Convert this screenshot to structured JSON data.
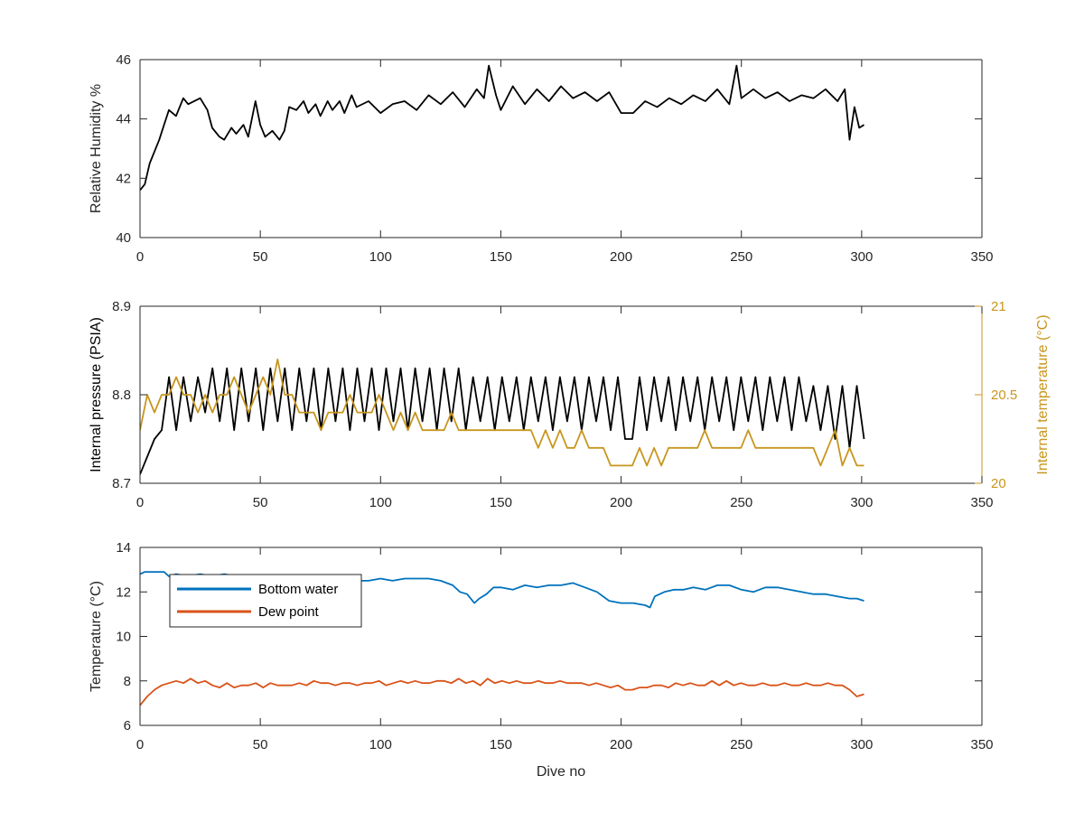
{
  "colors": {
    "black": "#000000",
    "axis": "#262626",
    "pressure": "#000000",
    "temperature_right": "#c8961e",
    "bottom_water": "#0072bd",
    "dew_point": "#d95319"
  },
  "chart_data": [
    {
      "type": "line",
      "title": "",
      "xlabel": "",
      "ylabel": "Relative Humidity %",
      "xlim": [
        0,
        350
      ],
      "ylim": [
        40,
        46
      ],
      "xticks": [
        "0",
        "50",
        "100",
        "150",
        "200",
        "250",
        "300",
        "350"
      ],
      "yticks": [
        "40",
        "42",
        "44",
        "46"
      ],
      "grid": false,
      "series": [
        {
          "color": "black",
          "x": [
            0,
            2,
            4,
            6,
            8,
            10,
            12,
            15,
            18,
            20,
            25,
            28,
            30,
            33,
            35,
            38,
            40,
            43,
            45,
            48,
            50,
            52,
            55,
            58,
            60,
            62,
            65,
            68,
            70,
            73,
            75,
            78,
            80,
            83,
            85,
            88,
            90,
            95,
            100,
            105,
            110,
            115,
            120,
            125,
            130,
            135,
            140,
            143,
            145,
            148,
            150,
            155,
            160,
            165,
            170,
            175,
            180,
            185,
            190,
            195,
            200,
            205,
            210,
            215,
            220,
            225,
            230,
            235,
            240,
            245,
            248,
            250,
            255,
            260,
            265,
            270,
            275,
            280,
            285,
            290,
            293,
            295,
            297,
            299,
            301
          ],
          "values": [
            41.6,
            41.8,
            42.5,
            42.9,
            43.3,
            43.8,
            44.3,
            44.1,
            44.7,
            44.5,
            44.7,
            44.3,
            43.7,
            43.4,
            43.3,
            43.7,
            43.5,
            43.8,
            43.4,
            44.6,
            43.8,
            43.4,
            43.6,
            43.3,
            43.6,
            44.4,
            44.3,
            44.6,
            44.2,
            44.5,
            44.1,
            44.6,
            44.3,
            44.6,
            44.2,
            44.8,
            44.4,
            44.6,
            44.2,
            44.5,
            44.6,
            44.3,
            44.8,
            44.5,
            44.9,
            44.4,
            45.0,
            44.7,
            45.8,
            44.8,
            44.3,
            45.1,
            44.5,
            45.0,
            44.6,
            45.1,
            44.7,
            44.9,
            44.6,
            44.9,
            44.2,
            44.2,
            44.6,
            44.4,
            44.7,
            44.5,
            44.8,
            44.6,
            45.0,
            44.5,
            45.8,
            44.7,
            45.0,
            44.7,
            44.9,
            44.6,
            44.8,
            44.7,
            45.0,
            44.6,
            45.0,
            43.3,
            44.4,
            43.7,
            43.8
          ]
        }
      ]
    },
    {
      "type": "line",
      "title": "",
      "xlabel": "",
      "ylabel": "Internal pressure (PSIA)",
      "ylabel_right": "Internal temperature (°C)",
      "xlim": [
        0,
        350
      ],
      "ylim": [
        8.7,
        8.9
      ],
      "ylim_right": [
        20,
        21
      ],
      "xticks": [
        "0",
        "50",
        "100",
        "150",
        "200",
        "250",
        "300",
        "350"
      ],
      "yticks": [
        "8.7",
        "8.8",
        "8.9"
      ],
      "yticks_right": [
        "20",
        "20.5",
        "21"
      ],
      "grid": false,
      "series": [
        {
          "axis": "left",
          "color": "pressure",
          "x_start": 0,
          "x_end": 301,
          "x_step": 3,
          "values": [
            8.71,
            8.73,
            8.75,
            8.76,
            8.82,
            8.76,
            8.82,
            8.77,
            8.82,
            8.78,
            8.83,
            8.77,
            8.83,
            8.76,
            8.83,
            8.77,
            8.83,
            8.76,
            8.83,
            8.77,
            8.83,
            8.76,
            8.83,
            8.77,
            8.83,
            8.76,
            8.83,
            8.77,
            8.83,
            8.76,
            8.83,
            8.77,
            8.83,
            8.76,
            8.83,
            8.77,
            8.83,
            8.76,
            8.83,
            8.77,
            8.83,
            8.76,
            8.83,
            8.77,
            8.83,
            8.76,
            8.82,
            8.77,
            8.82,
            8.76,
            8.82,
            8.77,
            8.82,
            8.76,
            8.82,
            8.77,
            8.82,
            8.76,
            8.82,
            8.77,
            8.82,
            8.76,
            8.82,
            8.77,
            8.82,
            8.76,
            8.82,
            8.75,
            8.75,
            8.82,
            8.76,
            8.82,
            8.77,
            8.82,
            8.76,
            8.82,
            8.77,
            8.82,
            8.76,
            8.82,
            8.77,
            8.82,
            8.76,
            8.82,
            8.77,
            8.82,
            8.76,
            8.82,
            8.77,
            8.82,
            8.76,
            8.82,
            8.77,
            8.81,
            8.76,
            8.81,
            8.75,
            8.81,
            8.74,
            8.81,
            8.75
          ]
        },
        {
          "axis": "right",
          "color": "temperature_right",
          "x_start": 0,
          "x_end": 301,
          "x_step": 3,
          "values": [
            20.3,
            20.5,
            20.4,
            20.5,
            20.5,
            20.6,
            20.5,
            20.5,
            20.4,
            20.5,
            20.4,
            20.5,
            20.5,
            20.6,
            20.5,
            20.4,
            20.5,
            20.6,
            20.5,
            20.7,
            20.5,
            20.5,
            20.4,
            20.4,
            20.4,
            20.3,
            20.4,
            20.4,
            20.4,
            20.5,
            20.4,
            20.4,
            20.4,
            20.5,
            20.4,
            20.3,
            20.4,
            20.3,
            20.4,
            20.3,
            20.3,
            20.3,
            20.3,
            20.4,
            20.3,
            20.3,
            20.3,
            20.3,
            20.3,
            20.3,
            20.3,
            20.3,
            20.3,
            20.3,
            20.3,
            20.2,
            20.3,
            20.2,
            20.3,
            20.2,
            20.2,
            20.3,
            20.2,
            20.2,
            20.2,
            20.1,
            20.1,
            20.1,
            20.1,
            20.2,
            20.1,
            20.2,
            20.1,
            20.2,
            20.2,
            20.2,
            20.2,
            20.2,
            20.3,
            20.2,
            20.2,
            20.2,
            20.2,
            20.2,
            20.3,
            20.2,
            20.2,
            20.2,
            20.2,
            20.2,
            20.2,
            20.2,
            20.2,
            20.2,
            20.1,
            20.2,
            20.3,
            20.1,
            20.2,
            20.1,
            20.1
          ]
        }
      ]
    },
    {
      "type": "line",
      "title": "",
      "xlabel": "Dive no",
      "ylabel": "Temperature (°C)",
      "xlim": [
        0,
        350
      ],
      "ylim": [
        6,
        14
      ],
      "xticks": [
        "0",
        "50",
        "100",
        "150",
        "200",
        "250",
        "300",
        "350"
      ],
      "yticks": [
        "6",
        "8",
        "10",
        "12",
        "14"
      ],
      "grid": false,
      "legend": "top-left",
      "series": [
        {
          "name": "Bottom water",
          "color": "bottom_water",
          "x": [
            0,
            2,
            5,
            10,
            12,
            15,
            20,
            25,
            30,
            35,
            40,
            45,
            50,
            55,
            60,
            65,
            70,
            75,
            80,
            85,
            90,
            95,
            100,
            105,
            110,
            115,
            120,
            125,
            130,
            133,
            136,
            139,
            141,
            144,
            147,
            150,
            155,
            160,
            165,
            170,
            175,
            180,
            185,
            190,
            195,
            200,
            205,
            210,
            212,
            214,
            218,
            222,
            226,
            230,
            235,
            240,
            245,
            250,
            255,
            260,
            265,
            270,
            275,
            280,
            285,
            290,
            295,
            298,
            301
          ],
          "values": [
            12.8,
            12.9,
            12.9,
            12.9,
            12.7,
            12.8,
            12.7,
            12.8,
            12.7,
            12.8,
            12.7,
            12.7,
            12.6,
            12.7,
            12.6,
            12.5,
            12.6,
            12.5,
            12.5,
            12.6,
            12.5,
            12.5,
            12.6,
            12.5,
            12.6,
            12.6,
            12.6,
            12.5,
            12.3,
            12.0,
            11.9,
            11.5,
            11.7,
            11.9,
            12.2,
            12.2,
            12.1,
            12.3,
            12.2,
            12.3,
            12.3,
            12.4,
            12.2,
            12.0,
            11.6,
            11.5,
            11.5,
            11.4,
            11.3,
            11.8,
            12.0,
            12.1,
            12.1,
            12.2,
            12.1,
            12.3,
            12.3,
            12.1,
            12.0,
            12.2,
            12.2,
            12.1,
            12.0,
            11.9,
            11.9,
            11.8,
            11.7,
            11.7,
            11.6
          ]
        },
        {
          "name": "Dew point",
          "color": "dew_point",
          "x_start": 0,
          "x_end": 301,
          "x_step": 3,
          "values": [
            6.9,
            7.3,
            7.6,
            7.8,
            7.9,
            8.0,
            7.9,
            8.1,
            7.9,
            8.0,
            7.8,
            7.7,
            7.9,
            7.7,
            7.8,
            7.8,
            7.9,
            7.7,
            7.9,
            7.8,
            7.8,
            7.8,
            7.9,
            7.8,
            8.0,
            7.9,
            7.9,
            7.8,
            7.9,
            7.9,
            7.8,
            7.9,
            7.9,
            8.0,
            7.8,
            7.9,
            8.0,
            7.9,
            8.0,
            7.9,
            7.9,
            8.0,
            8.0,
            7.9,
            8.1,
            7.9,
            8.0,
            7.8,
            8.1,
            7.9,
            8.0,
            7.9,
            8.0,
            7.9,
            7.9,
            8.0,
            7.9,
            7.9,
            8.0,
            7.9,
            7.9,
            7.9,
            7.8,
            7.9,
            7.8,
            7.7,
            7.8,
            7.6,
            7.6,
            7.7,
            7.7,
            7.8,
            7.8,
            7.7,
            7.9,
            7.8,
            7.9,
            7.8,
            7.8,
            8.0,
            7.8,
            8.0,
            7.8,
            7.9,
            7.8,
            7.8,
            7.9,
            7.8,
            7.8,
            7.9,
            7.8,
            7.8,
            7.9,
            7.8,
            7.8,
            7.9,
            7.8,
            7.8,
            7.6,
            7.3,
            7.4
          ]
        }
      ]
    }
  ]
}
